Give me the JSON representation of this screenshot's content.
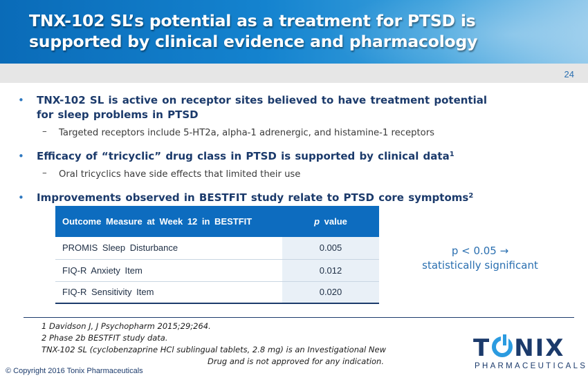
{
  "slide": {
    "title_line1": "TNX-102 SL’s potential as a treatment for PTSD is",
    "title_line2": "supported by clinical evidence and pharmacology",
    "page_number": "24"
  },
  "bullets": [
    {
      "text_line1": "TNX-102 SL is active on receptor sites believed to have treatment potential",
      "text_line2": "for sleep problems in PTSD",
      "sub": "Targeted receptors include 5-HT2a, alpha-1 adrenergic, and histamine-1 receptors"
    },
    {
      "text": "Efficacy of “tricyclic” drug class in PTSD is supported by clinical data",
      "sup": "1",
      "sub": "Oral tricyclics have side effects that limited their use"
    },
    {
      "text": "Improvements observed in BESTFIT study relate to PTSD core symptoms",
      "sup": "2"
    }
  ],
  "table": {
    "header_measure": "Outcome Measure at Week 12 in BESTFIT",
    "header_p": "p",
    "header_value": " value",
    "rows": [
      {
        "measure": "PROMIS Sleep Disturbance",
        "p": "0.005"
      },
      {
        "measure": "FIQ-R Anxiety Item",
        "p": "0.012"
      },
      {
        "measure": "FIQ-R Sensitivity Item",
        "p": "0.020"
      }
    ]
  },
  "note": {
    "line1": "p < 0.05 →",
    "line2": "statistically significant"
  },
  "footnotes": {
    "ref1": "1 Davidson J, J Psychopharm 2015;29;264.",
    "ref2": "2 Phase 2b BESTFIT study data.",
    "disclaimer_line1": "TNX-102 SL (cyclobenzaprine HCl sublingual tablets, 2.8 mg) is an Investigational New",
    "disclaimer_line2": "Drug and is not approved for any indication."
  },
  "copyright": "© Copyright 2016 Tonix Pharmaceuticals",
  "logo": {
    "word_left": "T",
    "word_right": "NIX",
    "subtitle": "PHARMACEUTICALS"
  },
  "colors": {
    "title_bar": "#1483cf",
    "text_navy": "#1b3a6b",
    "accent_blue": "#2a6fb0",
    "table_header": "#0d6cbf",
    "logo_blue": "#2b9be0"
  }
}
